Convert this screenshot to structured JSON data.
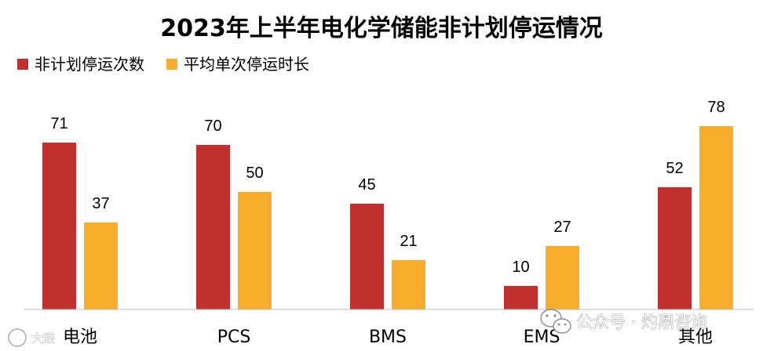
{
  "chart_data": {
    "type": "bar",
    "title": "2023年上半年电化学储能非计划停运情况",
    "categories": [
      "电池",
      "PCS",
      "BMS",
      "EMS",
      "其他"
    ],
    "series": [
      {
        "name": "非计划停运次数",
        "values": [
          71,
          70,
          45,
          10,
          52
        ]
      },
      {
        "name": "平均单次停运时长",
        "values": [
          37,
          50,
          21,
          27,
          78
        ]
      }
    ],
    "ylim": [
      0,
      100
    ],
    "grid": false,
    "legend_position": "top-left",
    "data_labels": true
  },
  "colors": {
    "series_1": "#c0302e",
    "series_2": "#f8ae2d",
    "axis": "#bfbfbf"
  },
  "watermarks": {
    "bottom_right": "公众号 · 灼鼎咨询",
    "bottom_left": "大眼"
  }
}
